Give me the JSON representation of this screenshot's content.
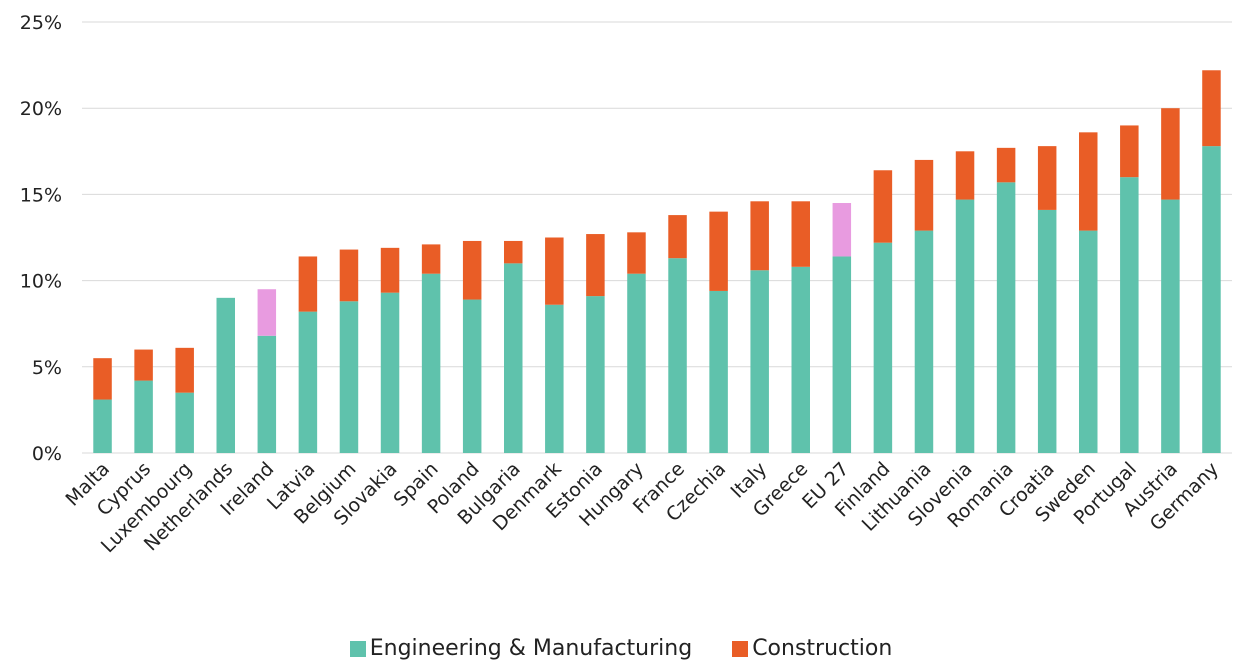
{
  "chart_data": {
    "type": "bar",
    "stacked": true,
    "categories": [
      "Malta",
      "Cyprus",
      "Luxembourg",
      "Netherlands",
      "Ireland",
      "Latvia",
      "Belgium",
      "Slovakia",
      "Spain",
      "Poland",
      "Bulgaria",
      "Denmark",
      "Estonia",
      "Hungary",
      "France",
      "Czechia",
      "Italy",
      "Greece",
      "EU 27",
      "Finland",
      "Lithuania",
      "Slovenia",
      "Romania",
      "Croatia",
      "Sweden",
      "Portugal",
      "Austria",
      "Germany"
    ],
    "series": [
      {
        "name": "Engineering & Manufacturing",
        "color": "#5fc2ac",
        "values": [
          3.1,
          4.2,
          3.5,
          9.0,
          6.8,
          8.2,
          8.8,
          9.3,
          10.4,
          8.9,
          11.0,
          8.6,
          9.1,
          10.4,
          11.3,
          9.4,
          10.6,
          10.8,
          11.4,
          12.2,
          12.9,
          14.7,
          15.7,
          14.1,
          12.9,
          16.0,
          14.7,
          17.8
        ]
      },
      {
        "name": "Construction",
        "color": "#e95d26",
        "values": [
          2.4,
          1.8,
          2.6,
          0.0,
          2.7,
          3.2,
          3.0,
          2.6,
          1.7,
          3.4,
          1.3,
          3.9,
          3.6,
          2.4,
          2.5,
          4.6,
          4.0,
          3.8,
          3.1,
          4.2,
          4.1,
          2.8,
          2.0,
          3.7,
          5.7,
          3.0,
          5.3,
          4.4
        ]
      }
    ],
    "highlight": {
      "categories": [
        "Ireland",
        "EU 27"
      ],
      "color": "#e89be0"
    },
    "y_ticks": [
      "0%",
      "5%",
      "10%",
      "15%",
      "20%",
      "25%"
    ],
    "ylim": [
      0,
      25
    ],
    "grid": true,
    "legend_position": "bottom-center"
  }
}
